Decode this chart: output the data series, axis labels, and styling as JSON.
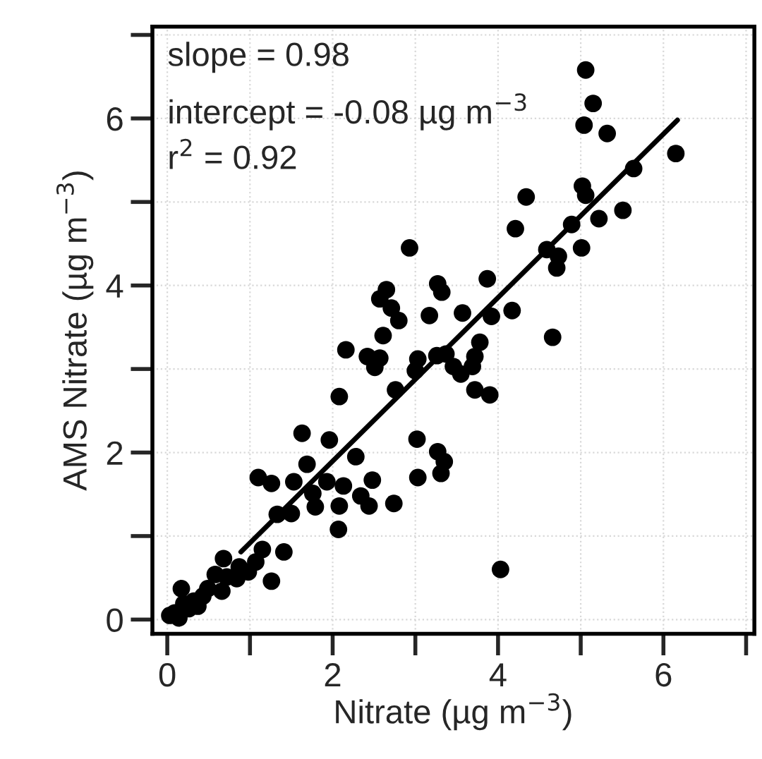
{
  "chart_data": {
    "type": "scatter",
    "xlabel": "Nitrate (µg m$^{−3}$)",
    "ylabel": "AMS Nitrate (µg m$^{−3}$)",
    "annotations": [
      "slope = 0.98",
      "intercept = -0.08 µg m$^{−3}$",
      "r$^{2}$ = 0.92"
    ],
    "xlim": [
      -0.18,
      7.1
    ],
    "ylim": [
      -0.17,
      7.1
    ],
    "xticks": [
      0,
      {
        "value": 1,
        "label": null
      },
      2,
      {
        "value": 3,
        "label": null
      },
      4,
      {
        "value": 5,
        "label": null
      },
      6,
      {
        "value": 7,
        "label": null
      }
    ],
    "yticks": [
      0,
      {
        "value": 1,
        "label": null
      },
      2,
      {
        "value": 3,
        "label": null
      },
      4,
      {
        "value": 5,
        "label": null
      },
      6,
      {
        "value": 7,
        "label": null
      }
    ],
    "grid": true,
    "series": [
      {
        "marker": "circle",
        "color": "#000000",
        "x": [
          5.06,
          5.15,
          5.04,
          5.32,
          6.15,
          5.64,
          5.02,
          5.06,
          4.34,
          4.21,
          5.51,
          5.22,
          4.89,
          5.01,
          4.59,
          4.73,
          4.71,
          2.93,
          3.87,
          3.27,
          3.32,
          2.65,
          2.57,
          2.71,
          2.8,
          3.17,
          3.57,
          3.92,
          4.17,
          4.66,
          2.61,
          2.16,
          2.42,
          2.57,
          2.51,
          3.03,
          3.0,
          3.26,
          3.37,
          3.46,
          3.55,
          3.72,
          3.78,
          3.69,
          2.76,
          3.72,
          3.9,
          2.08,
          1.63,
          1.96,
          1.69,
          2.28,
          3.02,
          3.27,
          3.35,
          3.31,
          3.03,
          1.1,
          1.26,
          1.53,
          1.93,
          2.13,
          2.48,
          1.76,
          1.79,
          2.08,
          2.44,
          2.34,
          2.74,
          2.07,
          1.33,
          1.5,
          4.03,
          1.41,
          1.26,
          1.15,
          1.07,
          0.68,
          0.87,
          0.84,
          0.58,
          0.66,
          0.49,
          0.17,
          0.32,
          0.43,
          0.2,
          0.09,
          0.03,
          0.14,
          0.26,
          0.98,
          0.72,
          0.37
        ],
        "values": [
          6.58,
          6.18,
          5.92,
          5.82,
          5.58,
          5.4,
          5.19,
          5.08,
          5.06,
          4.68,
          4.9,
          4.8,
          4.73,
          4.45,
          4.43,
          4.35,
          4.21,
          4.45,
          4.08,
          4.02,
          3.92,
          3.95,
          3.84,
          3.73,
          3.58,
          3.64,
          3.67,
          3.63,
          3.7,
          3.38,
          3.4,
          3.23,
          3.15,
          3.13,
          3.02,
          3.12,
          2.98,
          3.16,
          3.18,
          3.03,
          2.94,
          3.15,
          3.32,
          3.03,
          2.75,
          2.75,
          2.69,
          2.67,
          2.23,
          2.15,
          1.86,
          1.95,
          2.16,
          2.01,
          1.89,
          1.75,
          1.7,
          1.7,
          1.63,
          1.65,
          1.65,
          1.6,
          1.67,
          1.51,
          1.35,
          1.36,
          1.36,
          1.48,
          1.39,
          1.08,
          1.26,
          1.27,
          0.6,
          0.81,
          0.46,
          0.84,
          0.69,
          0.73,
          0.63,
          0.49,
          0.54,
          0.34,
          0.37,
          0.37,
          0.22,
          0.28,
          0.19,
          0.08,
          0.05,
          0.02,
          0.13,
          0.57,
          0.51,
          0.16
        ]
      },
      {
        "type": "line",
        "marker": "none",
        "color": "#000000",
        "x": [
          0.89,
          6.17
        ],
        "values": [
          0.81,
          5.98
        ]
      }
    ]
  }
}
